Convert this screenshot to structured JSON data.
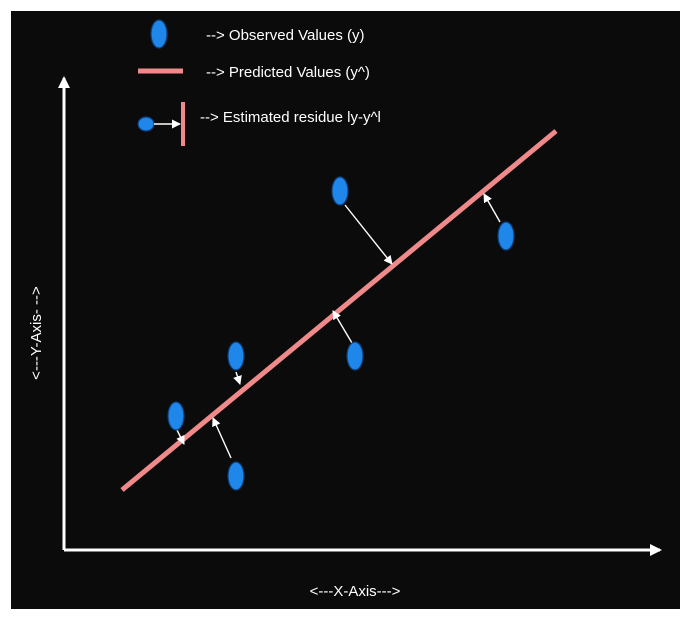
{
  "legend": {
    "observed": "--> Observed Values (y)",
    "predicted": "--> Predicted Values (y^)",
    "residue": "--> Estimated residue ly-y^l"
  },
  "axes": {
    "x_label": "<---X-Axis--->",
    "y_label": "<---Y-Axis- -->"
  },
  "colors": {
    "background": "#0b0b0b",
    "point": "#1f86ea",
    "point_stroke": "#0a3f7a",
    "regression_line": "#f08a8a",
    "axis": "#ffffff",
    "arrow": "#ffffff"
  }
}
